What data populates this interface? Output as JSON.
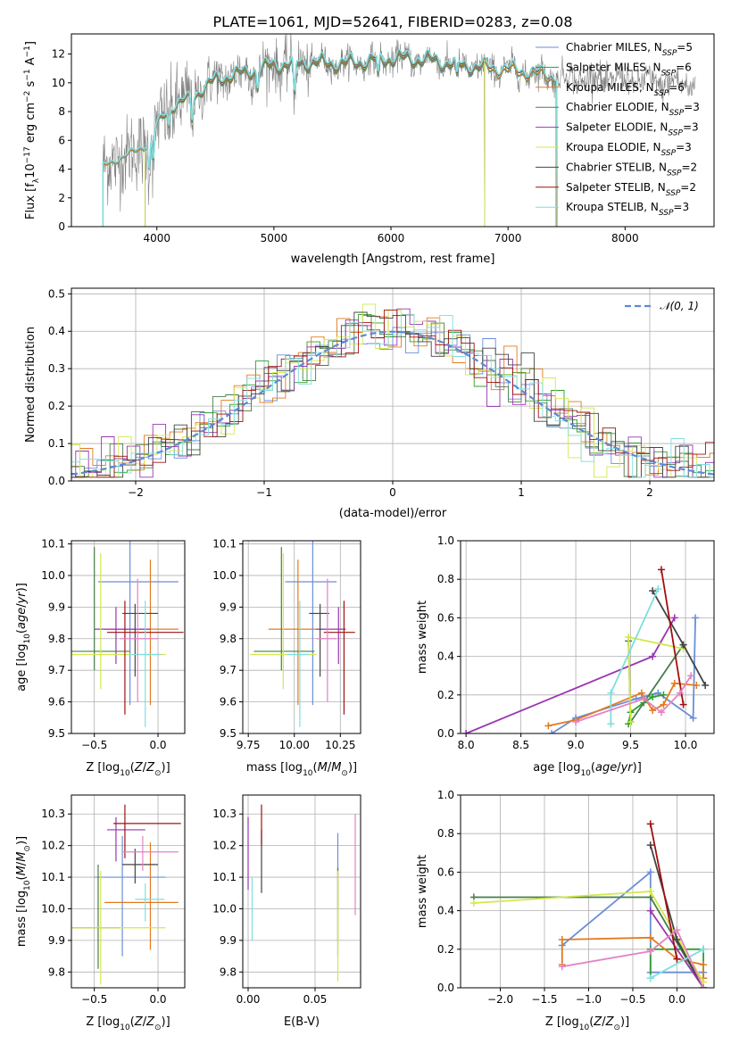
{
  "figure": {
    "title": "PLATE=1061, MJD=52641, FIBERID=0283, z=0.08"
  },
  "colors": {
    "Chabrier MILES": "#6a8fd8",
    "Salpeter MILES": "#2ca02c",
    "Kroupa MILES": "#e07b20",
    "Chabrier ELODIE": "#4a7d4a",
    "Salpeter ELODIE": "#9a35b0",
    "Kroupa ELODIE": "#d4e84a",
    "Chabrier STELIB": "#444444",
    "Salpeter STELIB": "#a01010",
    "Kroupa STELIB": "#7fdede",
    "pink": "#e383c3",
    "data": "#808080"
  },
  "chart_data": [
    {
      "id": "spectrum",
      "type": "line",
      "xlabel": "wavelength [Angstrom, rest frame]",
      "ylabel": "Flux [f_λ 10^-17 erg cm^-2 s^-1 A^-1]",
      "xlim": [
        3270,
        8760
      ],
      "ylim": [
        0,
        13.4
      ],
      "xticks": [
        4000,
        5000,
        6000,
        7000,
        8000
      ],
      "yticks": [
        0,
        2,
        4,
        6,
        8,
        10,
        12
      ],
      "grid": false,
      "legend_position": "right",
      "legend": [
        {
          "base": "Chabrier MILES, N",
          "sub": "SSP",
          "tail": "=5",
          "color": "#6a8fd8"
        },
        {
          "base": "Salpeter MILES, N",
          "sub": "SSP",
          "tail": "=6",
          "color": "#2ca02c"
        },
        {
          "base": "Kroupa MILES, N",
          "sub": "SSP",
          "tail": "=6",
          "color": "#e07b20"
        },
        {
          "base": "Chabrier ELODIE, N",
          "sub": "SSP",
          "tail": "=3",
          "color": "#4a7d4a"
        },
        {
          "base": "Salpeter ELODIE, N",
          "sub": "SSP",
          "tail": "=3",
          "color": "#9a35b0"
        },
        {
          "base": "Kroupa ELODIE, N",
          "sub": "SSP",
          "tail": "=3",
          "color": "#d4e84a"
        },
        {
          "base": "Chabrier STELIB, N",
          "sub": "SSP",
          "tail": "=2",
          "color": "#444444"
        },
        {
          "base": "Salpeter STELIB, N",
          "sub": "SSP",
          "tail": "=2",
          "color": "#a01010"
        },
        {
          "base": "Kroupa STELIB, N",
          "sub": "SSP",
          "tail": "=3",
          "color": "#7fdede"
        }
      ],
      "model_range": {
        "MILES": [
          3540,
          7410
        ],
        "ELODIE": [
          3900,
          6800
        ],
        "STELIB": [
          3540,
          7420
        ]
      },
      "continuum": {
        "x": [
          3540,
          3700,
          3900,
          4000,
          4100,
          4300,
          4500,
          4700,
          5000,
          5300,
          5600,
          6000,
          6300,
          6600,
          7000,
          7200,
          7400,
          7600,
          8000,
          8400,
          8760
        ],
        "y": [
          4.2,
          4.8,
          5.6,
          7.0,
          8.2,
          9.0,
          10.2,
          10.6,
          11.2,
          11.4,
          11.3,
          11.7,
          11.6,
          11.2,
          10.9,
          10.7,
          10.4,
          10.3,
          10.2,
          10.0,
          9.8
        ]
      }
    },
    {
      "id": "residuals",
      "type": "histogram",
      "xlabel": "(data-model)/error",
      "ylabel": "Normed distribution",
      "xlim": [
        -2.5,
        2.5
      ],
      "ylim": [
        0,
        0.515
      ],
      "xticks": [
        -2,
        -1,
        0,
        1,
        2
      ],
      "yticks": [
        0.0,
        0.1,
        0.2,
        0.3,
        0.4,
        0.5
      ],
      "xtick_labels": [
        "−2",
        "−1",
        "0",
        "1",
        "2"
      ],
      "ytick_labels": [
        "0.0",
        "0.1",
        "0.2",
        "0.3",
        "0.4",
        "0.5"
      ],
      "grid": true,
      "legend": "𝒩(0, 1)",
      "legend_position": "top-right",
      "bin_width": 0.1
    },
    {
      "id": "age-vs-Z",
      "type": "errorbar",
      "xlabel": "Z [log10(Z/Z⊙)]",
      "ylabel": "age  [log10(age/yr)]",
      "xlim": [
        -0.68,
        0.21
      ],
      "ylim": [
        9.5,
        10.11
      ],
      "xticks": [
        -0.5,
        0.0
      ],
      "yticks": [
        9.5,
        9.6,
        9.7,
        9.8,
        9.9,
        10.0,
        10.1
      ],
      "xtick_labels": [
        "−0.5",
        "0.0"
      ],
      "ytick_labels": [
        "9.5",
        "9.6",
        "9.7",
        "9.8",
        "9.9",
        "10.0",
        "10.1"
      ],
      "grid": true,
      "points": [
        {
          "x": -0.22,
          "y": 9.98,
          "xl": -0.47,
          "xh": 0.16,
          "yl": 9.59,
          "yh": 10.14,
          "c": "#6a8fd8"
        },
        {
          "x": -0.06,
          "y": 9.83,
          "xl": -0.42,
          "xh": 0.16,
          "yl": 9.59,
          "yh": 10.05,
          "c": "#e07b20"
        },
        {
          "x": -0.5,
          "y": 9.76,
          "xl": -0.68,
          "xh": -0.22,
          "yl": 9.7,
          "yh": 10.09,
          "c": "#4a7d4a"
        },
        {
          "x": -0.33,
          "y": 9.83,
          "xl": -0.5,
          "xh": -0.06,
          "yl": 9.72,
          "yh": 9.9,
          "c": "#9a35b0"
        },
        {
          "x": -0.45,
          "y": 9.75,
          "xl": -0.68,
          "xh": 0.06,
          "yl": 9.64,
          "yh": 10.07,
          "c": "#d4e84a"
        },
        {
          "x": -0.18,
          "y": 9.88,
          "xl": -0.28,
          "xh": 0.0,
          "yl": 9.68,
          "yh": 9.91,
          "c": "#444444"
        },
        {
          "x": -0.26,
          "y": 9.82,
          "xl": -0.4,
          "xh": 0.2,
          "yl": 9.56,
          "yh": 9.92,
          "c": "#a01010"
        },
        {
          "x": -0.1,
          "y": 9.75,
          "xl": -0.22,
          "xh": 0.02,
          "yl": 9.52,
          "yh": 9.92,
          "c": "#7fdede"
        },
        {
          "x": -0.16,
          "y": 9.8,
          "xl": -0.3,
          "xh": 0.0,
          "yl": 9.6,
          "yh": 9.99,
          "c": "#e383c3"
        }
      ]
    },
    {
      "id": "age-vs-mass",
      "type": "errorbar",
      "xlabel": "mass [log10(M/M⊙)]",
      "ylabel": "",
      "xlim": [
        9.72,
        10.36
      ],
      "ylim": [
        9.5,
        10.11
      ],
      "xticks": [
        9.75,
        10.0,
        10.25
      ],
      "yticks": [
        9.5,
        9.6,
        9.7,
        9.8,
        9.9,
        10.0,
        10.1
      ],
      "xtick_labels": [
        "9.75",
        "10.00",
        "10.25"
      ],
      "ytick_labels": [
        "9.5",
        "9.6",
        "9.7",
        "9.8",
        "9.9",
        "10.0",
        "10.1"
      ],
      "grid": true,
      "points": [
        {
          "x": 10.1,
          "y": 9.98,
          "xl": 9.95,
          "xh": 10.23,
          "yl": 9.59,
          "yh": 10.14,
          "c": "#6a8fd8"
        },
        {
          "x": 10.02,
          "y": 9.83,
          "xl": 9.86,
          "xh": 10.18,
          "yl": 9.59,
          "yh": 10.05,
          "c": "#e07b20"
        },
        {
          "x": 9.93,
          "y": 9.76,
          "xl": 9.78,
          "xh": 10.11,
          "yl": 9.7,
          "yh": 10.09,
          "c": "#4a7d4a"
        },
        {
          "x": 10.24,
          "y": 9.83,
          "xl": 10.12,
          "xh": 10.28,
          "yl": 9.72,
          "yh": 9.9,
          "c": "#9a35b0"
        },
        {
          "x": 9.94,
          "y": 9.75,
          "xl": 9.76,
          "xh": 10.12,
          "yl": 9.64,
          "yh": 10.07,
          "c": "#d4e84a"
        },
        {
          "x": 10.14,
          "y": 9.88,
          "xl": 10.08,
          "xh": 10.19,
          "yl": 9.68,
          "yh": 9.91,
          "c": "#444444"
        },
        {
          "x": 10.27,
          "y": 9.82,
          "xl": 10.16,
          "xh": 10.33,
          "yl": 9.56,
          "yh": 9.92,
          "c": "#a01010"
        },
        {
          "x": 10.03,
          "y": 9.75,
          "xl": 9.96,
          "xh": 10.08,
          "yl": 9.52,
          "yh": 9.92,
          "c": "#7fdede"
        },
        {
          "x": 10.18,
          "y": 9.8,
          "xl": 10.12,
          "xh": 10.23,
          "yl": 9.6,
          "yh": 9.99,
          "c": "#e383c3"
        }
      ]
    },
    {
      "id": "weight-vs-age",
      "type": "line",
      "xlabel": "age  [log10(age/yr)]",
      "ylabel": "mass weight",
      "xlim": [
        7.95,
        10.26
      ],
      "ylim": [
        0,
        1.0
      ],
      "xticks": [
        8.0,
        8.5,
        9.0,
        9.5,
        10.0
      ],
      "yticks": [
        0.0,
        0.2,
        0.4,
        0.6,
        0.8,
        1.0
      ],
      "xtick_labels": [
        "8.0",
        "8.5",
        "9.0",
        "9.5",
        "10.0"
      ],
      "ytick_labels": [
        "0.0",
        "0.2",
        "0.4",
        "0.6",
        "0.8",
        "1.0"
      ],
      "grid": true,
      "series": [
        {
          "c": "#6a8fd8",
          "x": [
            8.78,
            9.0,
            9.55,
            9.75,
            10.07,
            10.09
          ],
          "y": [
            0.0,
            0.08,
            0.18,
            0.21,
            0.08,
            0.6
          ]
        },
        {
          "c": "#2ca02c",
          "x": [
            9.48,
            9.5,
            9.62,
            9.7,
            9.8
          ],
          "y": [
            0.05,
            0.11,
            0.16,
            0.19,
            0.2
          ]
        },
        {
          "c": "#e07b20",
          "x": [
            8.75,
            9.0,
            9.6,
            9.7,
            9.8,
            9.9,
            10.1
          ],
          "y": [
            0.04,
            0.07,
            0.21,
            0.12,
            0.15,
            0.26,
            0.25
          ]
        },
        {
          "c": "#4a7d4a",
          "x": [
            9.48,
            9.5,
            9.98
          ],
          "y": [
            0.48,
            0.06,
            0.46
          ]
        },
        {
          "c": "#9a35b0",
          "x": [
            8.0,
            9.7,
            9.9
          ],
          "y": [
            0.0,
            0.4,
            0.6
          ]
        },
        {
          "c": "#d4e84a",
          "x": [
            9.5,
            9.48,
            9.98
          ],
          "y": [
            0.06,
            0.5,
            0.44
          ]
        },
        {
          "c": "#444444",
          "x": [
            9.7,
            9.98,
            10.18
          ],
          "y": [
            0.74,
            0.46,
            0.25
          ]
        },
        {
          "c": "#a01010",
          "x": [
            9.78,
            9.98
          ],
          "y": [
            0.85,
            0.15
          ]
        },
        {
          "c": "#7fdede",
          "x": [
            9.32,
            9.32,
            9.75
          ],
          "y": [
            0.05,
            0.21,
            0.75
          ]
        },
        {
          "c": "#e383c3",
          "x": [
            9.0,
            9.62,
            9.78,
            9.95,
            10.05
          ],
          "y": [
            0.06,
            0.18,
            0.11,
            0.21,
            0.3
          ]
        }
      ]
    },
    {
      "id": "mass-vs-Z",
      "type": "errorbar",
      "xlabel": "Z [log10(Z/Z⊙)]",
      "ylabel": "mass [log10(M/M⊙)]",
      "xlim": [
        -0.68,
        0.21
      ],
      "ylim": [
        9.75,
        10.36
      ],
      "xticks": [
        -0.5,
        0.0
      ],
      "yticks": [
        9.8,
        9.9,
        10.0,
        10.1,
        10.2,
        10.3
      ],
      "xtick_labels": [
        "−0.5",
        "0.0"
      ],
      "ytick_labels": [
        "9.8",
        "9.9",
        "10.0",
        "10.1",
        "10.2",
        "10.3"
      ],
      "grid": true,
      "points": [
        {
          "x": -0.28,
          "y": 10.1,
          "xl": -0.5,
          "xh": 0.06,
          "yl": 9.85,
          "yh": 10.23,
          "c": "#6a8fd8"
        },
        {
          "x": -0.06,
          "y": 10.02,
          "xl": -0.42,
          "xh": 0.16,
          "yl": 9.87,
          "yh": 10.21,
          "c": "#e07b20"
        },
        {
          "x": -0.47,
          "y": 9.94,
          "xl": -0.68,
          "xh": -0.3,
          "yl": 9.81,
          "yh": 10.14,
          "c": "#4a7d4a"
        },
        {
          "x": -0.33,
          "y": 10.25,
          "xl": -0.4,
          "xh": -0.1,
          "yl": 10.15,
          "yh": 10.29,
          "c": "#9a35b0"
        },
        {
          "x": -0.45,
          "y": 9.94,
          "xl": -0.68,
          "xh": 0.06,
          "yl": 9.76,
          "yh": 10.12,
          "c": "#d4e84a"
        },
        {
          "x": -0.18,
          "y": 10.14,
          "xl": -0.28,
          "xh": 0.0,
          "yl": 10.08,
          "yh": 10.19,
          "c": "#444444"
        },
        {
          "x": -0.26,
          "y": 10.27,
          "xl": -0.35,
          "xh": 0.18,
          "yl": 10.16,
          "yh": 10.33,
          "c": "#a01010"
        },
        {
          "x": -0.1,
          "y": 10.03,
          "xl": -0.18,
          "xh": 0.05,
          "yl": 9.96,
          "yh": 10.08,
          "c": "#7fdede"
        },
        {
          "x": -0.12,
          "y": 10.18,
          "xl": -0.28,
          "xh": 0.16,
          "yl": 10.12,
          "yh": 10.23,
          "c": "#e383c3"
        }
      ]
    },
    {
      "id": "mass-vs-EBV",
      "type": "errorbar",
      "xlabel": "E(B-V)",
      "ylabel": "",
      "xlim": [
        -0.004,
        0.084
      ],
      "ylim": [
        9.75,
        10.36
      ],
      "xticks": [
        0.0,
        0.05
      ],
      "yticks": [
        9.8,
        9.9,
        10.0,
        10.1,
        10.2,
        10.3
      ],
      "xtick_labels": [
        "0.00",
        "0.05"
      ],
      "ytick_labels": [
        "9.8",
        "9.9",
        "10.0",
        "10.1",
        "10.2",
        "10.3"
      ],
      "grid": true,
      "points": [
        {
          "x": 0.067,
          "y": 10.1,
          "xl": 0.067,
          "xh": 0.067,
          "yl": 10.0,
          "yh": 10.24,
          "c": "#6a8fd8"
        },
        {
          "x": 0.067,
          "y": 10.02,
          "xl": 0.067,
          "xh": 0.067,
          "yl": 9.9,
          "yh": 10.13,
          "c": "#e07b20"
        },
        {
          "x": 0.067,
          "y": 9.94,
          "xl": 0.067,
          "xh": 0.067,
          "yl": 9.85,
          "yh": 10.13,
          "c": "#4a7d4a"
        },
        {
          "x": 0.0,
          "y": 10.2,
          "xl": 0.0,
          "xh": 0.0,
          "yl": 10.06,
          "yh": 10.29,
          "c": "#9a35b0"
        },
        {
          "x": 0.067,
          "y": 9.94,
          "xl": 0.067,
          "xh": 0.067,
          "yl": 9.77,
          "yh": 10.12,
          "c": "#d4e84a"
        },
        {
          "x": 0.01,
          "y": 10.14,
          "xl": 0.01,
          "xh": 0.01,
          "yl": 10.05,
          "yh": 10.25,
          "c": "#444444"
        },
        {
          "x": 0.01,
          "y": 10.27,
          "xl": 0.01,
          "xh": 0.01,
          "yl": 10.2,
          "yh": 10.33,
          "c": "#a01010"
        },
        {
          "x": 0.003,
          "y": 10.0,
          "xl": 0.003,
          "xh": 0.003,
          "yl": 9.9,
          "yh": 10.1,
          "c": "#7fdede"
        },
        {
          "x": 0.08,
          "y": 10.14,
          "xl": 0.08,
          "xh": 0.08,
          "yl": 9.98,
          "yh": 10.3,
          "c": "#e383c3"
        }
      ]
    },
    {
      "id": "weight-vs-Z",
      "type": "line",
      "xlabel": "Z [log10(Z/Z⊙)]",
      "ylabel": "mass weight",
      "xlim": [
        -2.45,
        0.42
      ],
      "ylim": [
        0,
        1.0
      ],
      "xticks": [
        -2.0,
        -1.5,
        -1.0,
        -0.5,
        0.0
      ],
      "yticks": [
        0.0,
        0.2,
        0.4,
        0.6,
        0.8,
        1.0
      ],
      "xtick_labels": [
        "−2.0",
        "−1.5",
        "−1.0",
        "−0.5",
        "0.0"
      ],
      "ytick_labels": [
        "0.0",
        "0.2",
        "0.4",
        "0.6",
        "0.8",
        "1.0"
      ],
      "grid": true,
      "series": [
        {
          "c": "#6a8fd8",
          "x": [
            -1.3,
            -0.3,
            -0.3,
            0.3
          ],
          "y": [
            0.22,
            0.6,
            0.08,
            0.08
          ]
        },
        {
          "c": "#2ca02c",
          "x": [
            -0.3,
            -0.3,
            0.3,
            0.3
          ],
          "y": [
            0.05,
            0.2,
            0.2,
            0.05
          ]
        },
        {
          "c": "#e07b20",
          "x": [
            -1.3,
            -1.3,
            -0.3,
            0.0,
            0.3,
            0.3
          ],
          "y": [
            0.12,
            0.25,
            0.26,
            0.15,
            0.12,
            0.05
          ]
        },
        {
          "c": "#4a7d4a",
          "x": [
            -2.3,
            -0.3,
            0.3
          ],
          "y": [
            0.47,
            0.47,
            0.0
          ]
        },
        {
          "c": "#9a35b0",
          "x": [
            -0.3,
            0.3
          ],
          "y": [
            0.4,
            0.0
          ]
        },
        {
          "c": "#d4e84a",
          "x": [
            -2.3,
            -0.3,
            0.3
          ],
          "y": [
            0.44,
            0.5,
            0.03
          ]
        },
        {
          "c": "#444444",
          "x": [
            -0.3,
            0.0,
            0.3
          ],
          "y": [
            0.74,
            0.25,
            0.0
          ]
        },
        {
          "c": "#a01010",
          "x": [
            -0.3,
            0.0
          ],
          "y": [
            0.85,
            0.15
          ]
        },
        {
          "c": "#7fdede",
          "x": [
            -0.3,
            0.3
          ],
          "y": [
            0.05,
            0.2
          ]
        },
        {
          "c": "#e383c3",
          "x": [
            -1.3,
            -0.3,
            0.0,
            0.3
          ],
          "y": [
            0.11,
            0.19,
            0.3,
            0.0
          ]
        }
      ]
    }
  ]
}
